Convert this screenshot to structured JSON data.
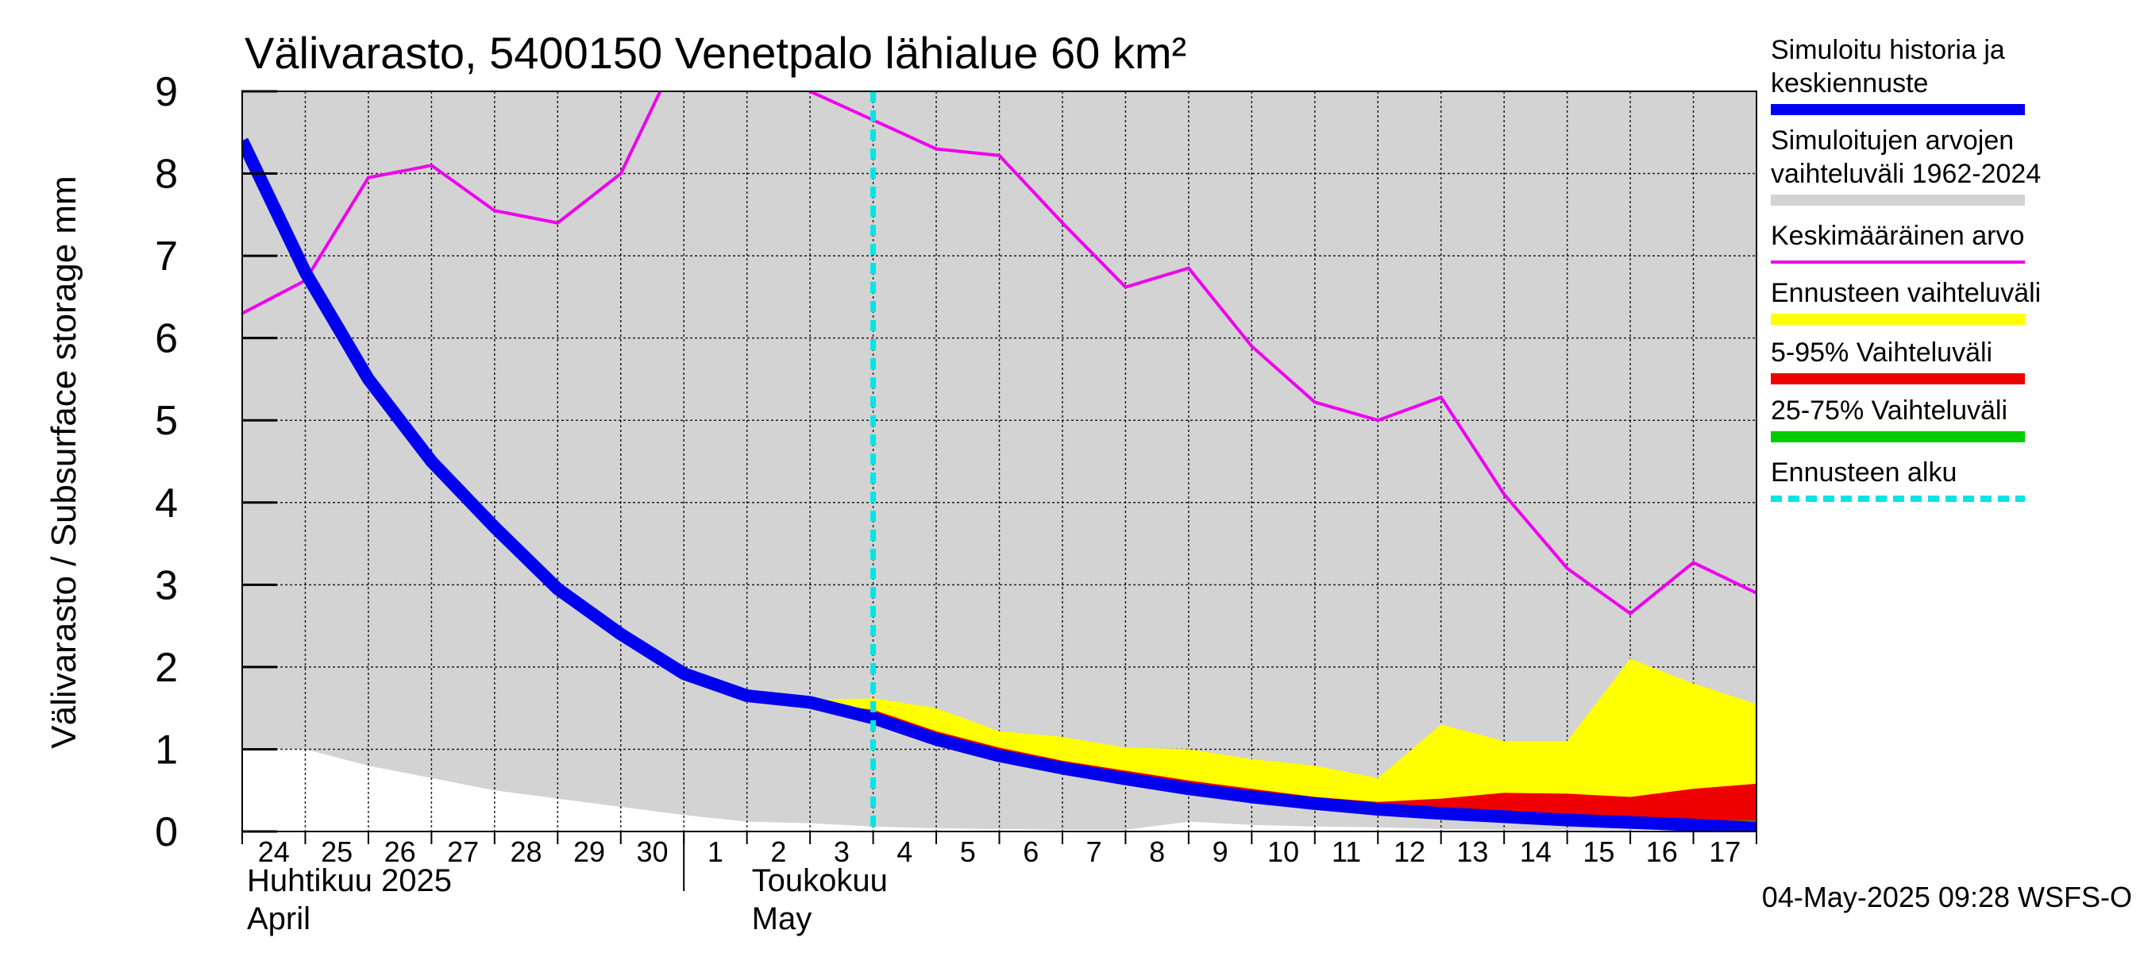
{
  "chart_data": {
    "type": "area",
    "title": "Välivarasto, 5400150 Venetpalo lähialue 60 km²",
    "ylabel": "Välivarasto / Subsurface storage  mm",
    "ylim": [
      0,
      9
    ],
    "yticks": [
      0,
      1,
      2,
      3,
      4,
      5,
      6,
      7,
      8,
      9
    ],
    "grid": true,
    "legend_position": "right",
    "x_day_labels": [
      "24",
      "25",
      "26",
      "27",
      "28",
      "29",
      "30",
      "1",
      "2",
      "3",
      "4",
      "5",
      "6",
      "7",
      "8",
      "9",
      "10",
      "11",
      "12",
      "13",
      "14",
      "15",
      "16",
      "17"
    ],
    "month_labels": [
      {
        "fi": "Huhtikuu  2025",
        "en": "April"
      },
      {
        "fi": "Toukokuu",
        "en": "May"
      }
    ],
    "x_dates": [
      "2025-04-24",
      "2025-04-25",
      "2025-04-26",
      "2025-04-27",
      "2025-04-28",
      "2025-04-29",
      "2025-04-30",
      "2025-05-01",
      "2025-05-02",
      "2025-05-03",
      "2025-05-04",
      "2025-05-05",
      "2025-05-06",
      "2025-05-07",
      "2025-05-08",
      "2025-05-09",
      "2025-05-10",
      "2025-05-11",
      "2025-05-12",
      "2025-05-13",
      "2025-05-14",
      "2025-05-15",
      "2025-05-16",
      "2025-05-17",
      "2025-05-18"
    ],
    "forecast_start": "2025-05-04",
    "series": [
      {
        "name": "Simuloitu historia ja keskiennuste",
        "color": "#0000ee",
        "values": [
          8.4,
          6.8,
          5.5,
          4.5,
          3.7,
          2.95,
          2.4,
          1.92,
          1.65,
          1.57,
          1.38,
          1.12,
          0.92,
          0.77,
          0.64,
          0.52,
          0.42,
          0.34,
          0.27,
          0.22,
          0.18,
          0.14,
          0.11,
          0.08,
          0.04
        ]
      },
      {
        "name": "Simuloitujen arvojen vaihteluväli 1962-2024",
        "color": "#d3d3d3",
        "upper": [
          9,
          9,
          9,
          9,
          9,
          9,
          9,
          9,
          9,
          9,
          9,
          9,
          9,
          9,
          9,
          9,
          9,
          9,
          9,
          9,
          9,
          9,
          9,
          9,
          9
        ],
        "lower": [
          1.0,
          1.0,
          0.8,
          0.65,
          0.5,
          0.4,
          0.3,
          0.2,
          0.12,
          0.1,
          0.06,
          0.04,
          0.03,
          0.02,
          0.02,
          0.12,
          0.08,
          0.06,
          0.05,
          0.03,
          0.02,
          0.02,
          0.02,
          0.02,
          0.02
        ]
      },
      {
        "name": "Keskimääräinen arvo",
        "color": "#ee00ee",
        "values": [
          6.3,
          6.7,
          7.95,
          8.1,
          7.55,
          7.4,
          8.0,
          9.6,
          9.6,
          9.0,
          8.65,
          8.3,
          8.22,
          7.4,
          6.62,
          6.85,
          5.9,
          5.22,
          5.0,
          5.28,
          4.1,
          3.2,
          2.65,
          3.27,
          2.9
        ]
      },
      {
        "name": "Ennusteen vaihteluväli",
        "color": "#ffff00",
        "upper": [
          null,
          null,
          null,
          null,
          null,
          null,
          null,
          null,
          null,
          1.6,
          1.62,
          1.5,
          1.22,
          1.15,
          1.02,
          1.0,
          0.88,
          0.8,
          0.65,
          1.3,
          1.1,
          1.1,
          2.1,
          1.8,
          1.55
        ],
        "lower": [
          null,
          null,
          null,
          null,
          null,
          null,
          null,
          null,
          null,
          1.57,
          1.38,
          1.12,
          0.92,
          0.77,
          0.64,
          0.52,
          0.42,
          0.34,
          0.27,
          0.22,
          0.18,
          0.14,
          0.11,
          0.08,
          0.04
        ]
      },
      {
        "name": "5-95% Vaihteluväli",
        "color": "#ee0000",
        "upper": [
          null,
          null,
          null,
          null,
          null,
          null,
          null,
          null,
          null,
          1.57,
          1.48,
          1.22,
          1.02,
          0.86,
          0.74,
          0.62,
          0.52,
          0.42,
          0.36,
          0.4,
          0.47,
          0.46,
          0.42,
          0.52,
          0.58
        ],
        "lower": [
          null,
          null,
          null,
          null,
          null,
          null,
          null,
          null,
          null,
          1.57,
          1.38,
          1.12,
          0.92,
          0.77,
          0.64,
          0.52,
          0.42,
          0.34,
          0.27,
          0.22,
          0.18,
          0.14,
          0.11,
          0.08,
          0.04
        ]
      },
      {
        "name": "25-75% Vaihteluväli",
        "color": "#00cc00",
        "upper": [
          null,
          null,
          null,
          null,
          null,
          null,
          null,
          null,
          null,
          1.57,
          1.4,
          1.14,
          0.94,
          0.79,
          0.66,
          0.54,
          0.44,
          0.36,
          0.29,
          0.24,
          0.2,
          0.17,
          0.15,
          0.14,
          0.13
        ],
        "lower": [
          null,
          null,
          null,
          null,
          null,
          null,
          null,
          null,
          null,
          1.57,
          1.38,
          1.12,
          0.92,
          0.77,
          0.64,
          0.52,
          0.42,
          0.34,
          0.27,
          0.22,
          0.18,
          0.14,
          0.11,
          0.08,
          0.04
        ]
      }
    ],
    "legend": [
      {
        "label_lines": [
          "Simuloitu historia ja",
          "keskiennuste"
        ],
        "color": "#0000ee",
        "style": "thick"
      },
      {
        "label_lines": [
          "Simuloitujen arvojen",
          "vaihteluväli 1962-2024"
        ],
        "color": "#d3d3d3",
        "style": "band"
      },
      {
        "label_lines": [
          "Keskimääräinen arvo"
        ],
        "color": "#ee00ee",
        "style": "thin"
      },
      {
        "label_lines": [
          "Ennusteen vaihteluväli"
        ],
        "color": "#ffff00",
        "style": "band"
      },
      {
        "label_lines": [
          "5-95% Vaihteluväli"
        ],
        "color": "#ee0000",
        "style": "band"
      },
      {
        "label_lines": [
          "25-75% Vaihteluväli"
        ],
        "color": "#00cc00",
        "style": "band"
      },
      {
        "label_lines": [
          "Ennusteen alku"
        ],
        "color": "#00e5e5",
        "style": "dashed"
      }
    ],
    "footer": "04-May-2025 09:28 WSFS-O"
  }
}
